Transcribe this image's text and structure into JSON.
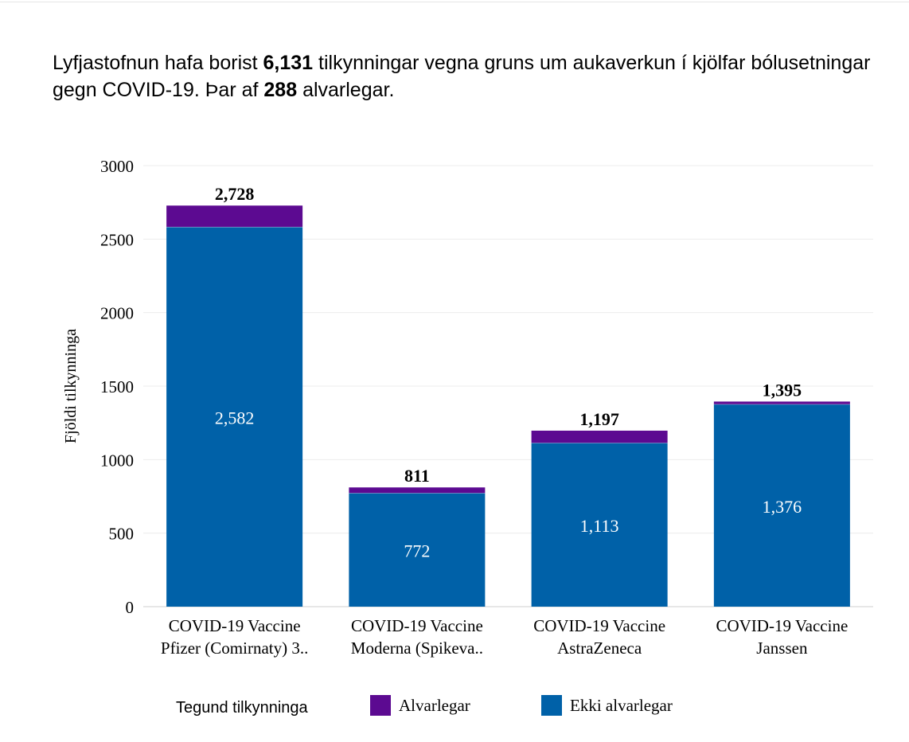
{
  "headline": {
    "p1": "Lyfjastofnun hafa borist ",
    "b1": "6,131",
    "p2": " tilkynningar vegna gruns um aukaverkun í kjölfar bólusetningar gegn COVID-19. Þar af ",
    "b2": "288",
    "p3": " alvarlegar."
  },
  "chart_data": {
    "type": "bar",
    "stacked": true,
    "title": "",
    "xlabel": "",
    "ylabel": "Fjöldi tilkynninga",
    "ylim": [
      0,
      3000
    ],
    "yticks": [
      0,
      500,
      1000,
      1500,
      2000,
      2500,
      3000
    ],
    "grid": true,
    "categories": [
      [
        "COVID-19 Vaccine",
        "Pfizer (Comirnaty) 3.."
      ],
      [
        "COVID-19 Vaccine",
        "Moderna (Spikeva.."
      ],
      [
        "COVID-19 Vaccine",
        "AstraZeneca"
      ],
      [
        "COVID-19 Vaccine",
        "Janssen"
      ]
    ],
    "series": [
      {
        "name": "Ekki alvarlegar",
        "color": "#0061a8",
        "values": [
          2582,
          772,
          1113,
          1376
        ],
        "labels": [
          "2,582",
          "772",
          "1,113",
          "1,376"
        ]
      },
      {
        "name": "Alvarlegar",
        "color": "#5c0a91",
        "values": [
          146,
          39,
          84,
          19
        ]
      }
    ],
    "totals": [
      "2,728",
      "811",
      "1,197",
      "1,395"
    ],
    "legend": {
      "title": "Tegund tilkynninga",
      "placement": "bottom"
    }
  }
}
